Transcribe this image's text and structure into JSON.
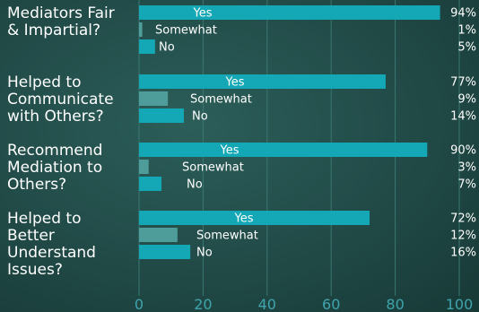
{
  "chart_data": {
    "type": "bar",
    "orientation": "horizontal",
    "xlim": [
      0,
      100
    ],
    "ticks": [
      0,
      20,
      40,
      60,
      80,
      100
    ],
    "colors": {
      "Yes": "#14a7b5",
      "Somewhat": "#4f9d9a",
      "No": "#14a7b5",
      "axis": "#3fa4ad"
    },
    "groups": [
      {
        "label_lines": [
          "Mediators Fair",
          "& Impartial?"
        ],
        "bars": [
          {
            "name": "Yes",
            "value": 94
          },
          {
            "name": "Somewhat",
            "value": 1
          },
          {
            "name": "No",
            "value": 5
          }
        ],
        "percent_labels": [
          "94%",
          "1%",
          "5%"
        ]
      },
      {
        "label_lines": [
          "Helped to",
          "Communicate",
          "with Others?"
        ],
        "bars": [
          {
            "name": "Yes",
            "value": 77
          },
          {
            "name": "Somewhat",
            "value": 9
          },
          {
            "name": "No",
            "value": 14
          }
        ],
        "percent_labels": [
          "77%",
          "9%",
          "14%"
        ]
      },
      {
        "label_lines": [
          "Recommend",
          "Mediation to",
          "Others?"
        ],
        "bars": [
          {
            "name": "Yes",
            "value": 90
          },
          {
            "name": "Somewhat",
            "value": 3
          },
          {
            "name": "No",
            "value": 7
          }
        ],
        "percent_labels": [
          "90%",
          "3%",
          "7%"
        ]
      },
      {
        "label_lines": [
          "Helped to",
          "Better",
          "Understand",
          "Issues?"
        ],
        "bars": [
          {
            "name": "Yes",
            "value": 72
          },
          {
            "name": "Somewhat",
            "value": 12
          },
          {
            "name": "No",
            "value": 16
          }
        ],
        "percent_labels": [
          "72%",
          "12%",
          "16%"
        ]
      }
    ]
  }
}
